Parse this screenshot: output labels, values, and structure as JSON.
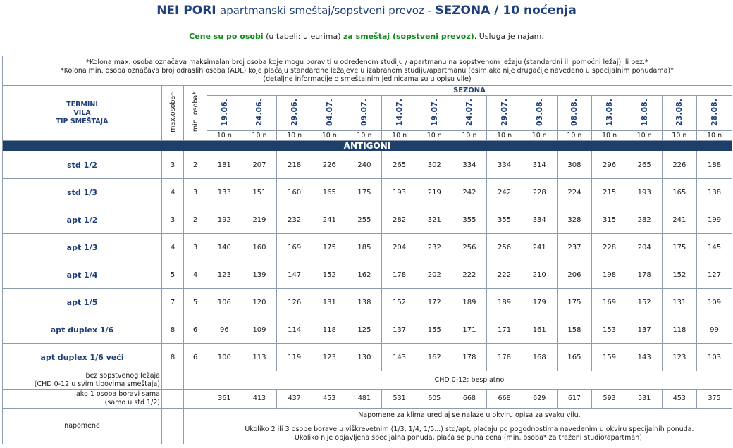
{
  "header": {
    "title_bold1": "NEI PORI",
    "title_normal": "apartmanski smeštaj/sopstveni prevoz -",
    "title_bold2": "SEZONA / 10 noćenja",
    "sub_green1": "Cene su po osobi",
    "sub_normal1": "(u tabeli: u eurima)",
    "sub_green2": "za smeštaj (sopstveni prevoz)",
    "sub_normal2": ". Usluga je najam."
  },
  "notes": {
    "line1": "*Kolona max. osoba označava maksimalan broj osoba koje mogu boraviti u određenom studiju / apartmanu na sopstvenom ležaju (standardni ili pomoćni ležaj) ili bez.*",
    "line2": "*Kolona min. osoba označava broj odraslih osoba (ADL) koje plaćaju standardne ležajeve u izabranom studiju/apartmanu (osim ako nije drugačije navedeno u specijalnim ponudama)*",
    "line3": "(detaljne informacije o smeštajnim jedinicama su u opisu vile)"
  },
  "table_header": {
    "left1": "TERMINI",
    "left2": "VILA",
    "left3": "TIP SMEŠTAJA",
    "max_label": "max.osoba*",
    "min_label": "min. osoba*",
    "sezona": "SEZONA",
    "dates": [
      "19.06.",
      "24.06.",
      "29.06.",
      "04.07.",
      "09.07.",
      "14.07.",
      "19.07.",
      "24.07.",
      "29.07.",
      "03.08.",
      "08.08.",
      "13.08.",
      "18.08.",
      "23.08.",
      "28.08."
    ],
    "nights": "10 n"
  },
  "section": "ANTIGONI",
  "rows": [
    {
      "type": "std 1/2",
      "max": "3",
      "min": "2",
      "prices": [
        "181",
        "207",
        "218",
        "226",
        "240",
        "265",
        "302",
        "334",
        "334",
        "314",
        "308",
        "296",
        "265",
        "226",
        "188"
      ]
    },
    {
      "type": "std 1/3",
      "max": "4",
      "min": "3",
      "prices": [
        "133",
        "151",
        "160",
        "165",
        "175",
        "193",
        "219",
        "242",
        "242",
        "228",
        "224",
        "215",
        "193",
        "165",
        "138"
      ]
    },
    {
      "type": "apt 1/2",
      "max": "3",
      "min": "2",
      "prices": [
        "192",
        "219",
        "232",
        "241",
        "255",
        "282",
        "321",
        "355",
        "355",
        "334",
        "328",
        "315",
        "282",
        "241",
        "199"
      ]
    },
    {
      "type": "apt 1/3",
      "max": "4",
      "min": "3",
      "prices": [
        "140",
        "160",
        "169",
        "175",
        "185",
        "204",
        "232",
        "256",
        "256",
        "241",
        "237",
        "228",
        "204",
        "175",
        "145"
      ]
    },
    {
      "type": "apt 1/4",
      "max": "5",
      "min": "4",
      "prices": [
        "123",
        "139",
        "147",
        "152",
        "162",
        "178",
        "202",
        "222",
        "222",
        "210",
        "206",
        "198",
        "178",
        "152",
        "127"
      ]
    },
    {
      "type": "apt 1/5",
      "max": "7",
      "min": "5",
      "prices": [
        "106",
        "120",
        "126",
        "131",
        "138",
        "152",
        "172",
        "189",
        "189",
        "179",
        "175",
        "169",
        "152",
        "131",
        "109"
      ]
    },
    {
      "type": "apt duplex 1/6",
      "max": "8",
      "min": "6",
      "prices": [
        "96",
        "109",
        "114",
        "118",
        "125",
        "137",
        "155",
        "171",
        "171",
        "161",
        "158",
        "153",
        "137",
        "118",
        "99"
      ]
    },
    {
      "type": "apt duplex 1/6 veći",
      "max": "8",
      "min": "6",
      "prices": [
        "100",
        "113",
        "119",
        "123",
        "130",
        "143",
        "162",
        "178",
        "178",
        "168",
        "165",
        "159",
        "143",
        "123",
        "103"
      ]
    }
  ],
  "extras": {
    "chd_label1": "bez sopstvenog ležaja",
    "chd_label2": "(CHD 0-12 u svim tipovima smeštaja)",
    "chd_value": "CHD 0-12: besplatno",
    "single_label1": "ako 1 osoba boravi sama",
    "single_label2": "(samo u std 1/2)",
    "single_prices": [
      "361",
      "413",
      "437",
      "453",
      "481",
      "531",
      "605",
      "668",
      "668",
      "629",
      "617",
      "593",
      "531",
      "453",
      "375"
    ],
    "napomene_label": "napomene",
    "napomena1": "Napomene za klima uredjaj se nalaze u okviru opisa za svaku vilu.",
    "napomena2a": "Ukoliko 2 ili 3 osobe borave u viškrevetnim (1/3, 1/4, 1/5...) std/apt, plaćaju po pogodnostima navedenim u okviru specijalnih ponuda.",
    "napomena2b": "Ukoliko nije objavljena specijalna ponuda, plaća se puna cena (min. osoba* za traženi studio/apartman)."
  },
  "colors": {
    "navy": "#1f3f7a",
    "green": "#138a1d",
    "section_bg": "#1f3f6b",
    "border": "#8c9bb0"
  }
}
